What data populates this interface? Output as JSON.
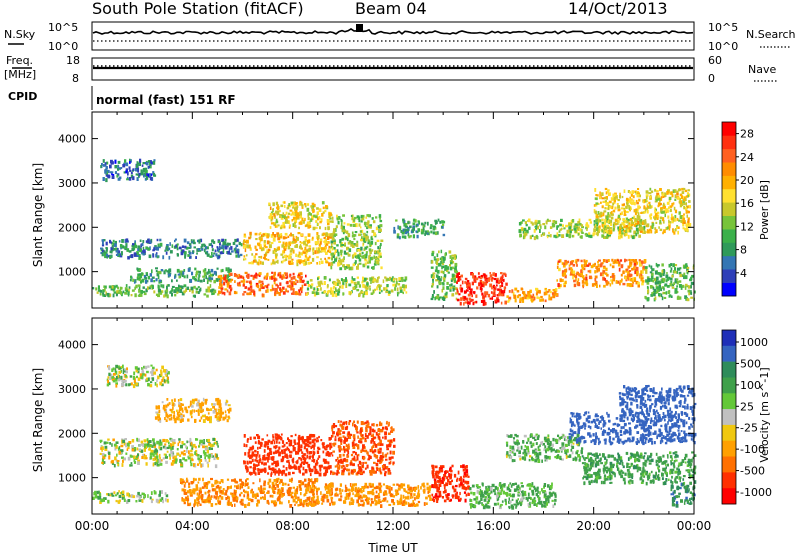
{
  "header": {
    "title": "South Pole Station (fitACF)",
    "beam": "Beam 04",
    "date": "14/Oct/2013"
  },
  "noise_panel": {
    "left_label": "N.Sky",
    "left_ticks": [
      "10^5",
      "10^0"
    ],
    "right_label": "N.Search",
    "right_ticks": [
      "10^5",
      "10^0"
    ]
  },
  "freq_panel": {
    "left_label_1": "Freq.",
    "left_label_2": "[MHz]",
    "left_ticks": [
      "18",
      "8"
    ],
    "right_label": "Nave",
    "right_ticks": [
      "60",
      "0"
    ]
  },
  "cpid": {
    "label": "CPID",
    "value": "normal (fast) 151 RF"
  },
  "chart_data": [
    {
      "type": "heatmap",
      "title": "",
      "xlabel": "",
      "ylabel": "Slant Range [km]",
      "x_ticks": [
        "00:00",
        "04:00",
        "08:00",
        "12:00",
        "16:00",
        "20:00",
        "00:00"
      ],
      "x_range_hours": [
        0,
        24
      ],
      "y_ticks": [
        1000,
        2000,
        3000,
        4000
      ],
      "ylim": [
        180,
        4600
      ],
      "colorbar": {
        "label": "Power [dB]",
        "ticks": [
          4,
          8,
          12,
          16,
          20,
          24,
          28
        ],
        "range": [
          0,
          30
        ],
        "colors": [
          "#0000ff",
          "#2e3fb8",
          "#3476b4",
          "#2f9a5a",
          "#3bb04a",
          "#77c43a",
          "#c8c82c",
          "#ffe030",
          "#ffb000",
          "#ff8c00",
          "#ff6020",
          "#ff3010",
          "#ff0000"
        ]
      },
      "echo_regions": [
        {
          "t": [
            0.3,
            2.5
          ],
          "r": [
            3100,
            3550
          ],
          "v": 6
        },
        {
          "t": [
            0.3,
            6.0
          ],
          "r": [
            1350,
            1750
          ],
          "v": 7
        },
        {
          "t": [
            1.5,
            5.5
          ],
          "r": [
            800,
            1100
          ],
          "v": 9
        },
        {
          "t": [
            0.0,
            5.0
          ],
          "r": [
            480,
            720
          ],
          "v": 11
        },
        {
          "t": [
            5.0,
            8.5
          ],
          "r": [
            500,
            1000
          ],
          "v": 24
        },
        {
          "t": [
            6.0,
            9.5
          ],
          "r": [
            1200,
            1900
          ],
          "v": 18
        },
        {
          "t": [
            7.0,
            9.5
          ],
          "r": [
            2000,
            2600
          ],
          "v": 17
        },
        {
          "t": [
            9.5,
            11.5
          ],
          "r": [
            1100,
            2300
          ],
          "v": 13
        },
        {
          "t": [
            8.5,
            12.5
          ],
          "r": [
            500,
            900
          ],
          "v": 14
        },
        {
          "t": [
            12.0,
            14.0
          ],
          "r": [
            1800,
            2200
          ],
          "v": 9
        },
        {
          "t": [
            13.5,
            14.5
          ],
          "r": [
            400,
            1500
          ],
          "v": 12
        },
        {
          "t": [
            14.5,
            16.5
          ],
          "r": [
            300,
            1000
          ],
          "v": 27
        },
        {
          "t": [
            16.5,
            18.5
          ],
          "r": [
            350,
            650
          ],
          "v": 21
        },
        {
          "t": [
            17.0,
            22.0
          ],
          "r": [
            1800,
            2200
          ],
          "v": 14
        },
        {
          "t": [
            18.5,
            22.0
          ],
          "r": [
            700,
            1300
          ],
          "v": 22
        },
        {
          "t": [
            20.0,
            23.8
          ],
          "r": [
            1900,
            2900
          ],
          "v": 17
        },
        {
          "t": [
            22.0,
            24.0
          ],
          "r": [
            400,
            1200
          ],
          "v": 11
        }
      ]
    },
    {
      "type": "heatmap",
      "title": "",
      "xlabel": "Time UT",
      "ylabel": "Slant Range [km]",
      "x_ticks": [
        "00:00",
        "04:00",
        "08:00",
        "12:00",
        "16:00",
        "20:00",
        "00:00"
      ],
      "x_range_hours": [
        0,
        24
      ],
      "y_ticks": [
        1000,
        2000,
        3000,
        4000
      ],
      "ylim": [
        180,
        4600
      ],
      "colorbar": {
        "label": "Velocity [m s^-1]",
        "ticks": [
          "1000",
          "500",
          "100",
          "25",
          "-25",
          "-100",
          "-500",
          "-1000"
        ],
        "colors": [
          "#1f2fb8",
          "#3564c0",
          "#2e8c5a",
          "#3fa04a",
          "#63c838",
          "#c0c0c0",
          "#f0c810",
          "#ffa000",
          "#ff7000",
          "#ff3000",
          "#ff0000"
        ]
      },
      "echo_regions": [
        {
          "t": [
            0.5,
            3.0
          ],
          "r": [
            3100,
            3550
          ],
          "v": 0
        },
        {
          "t": [
            0.3,
            5.0
          ],
          "r": [
            1300,
            1900
          ],
          "v": 0
        },
        {
          "t": [
            0.0,
            3.0
          ],
          "r": [
            480,
            720
          ],
          "v": 60
        },
        {
          "t": [
            2.5,
            5.5
          ],
          "r": [
            2300,
            2800
          ],
          "v": -150
        },
        {
          "t": [
            3.5,
            9.0
          ],
          "r": [
            400,
            1000
          ],
          "v": -300
        },
        {
          "t": [
            6.0,
            9.5
          ],
          "r": [
            1100,
            2000
          ],
          "v": -700
        },
        {
          "t": [
            9.5,
            12.0
          ],
          "r": [
            1100,
            2300
          ],
          "v": -500
        },
        {
          "t": [
            8.5,
            13.5
          ],
          "r": [
            400,
            900
          ],
          "v": -250
        },
        {
          "t": [
            13.5,
            15.0
          ],
          "r": [
            500,
            1300
          ],
          "v": -900
        },
        {
          "t": [
            15.0,
            18.5
          ],
          "r": [
            350,
            900
          ],
          "v": 150
        },
        {
          "t": [
            16.5,
            19.5
          ],
          "r": [
            1400,
            2000
          ],
          "v": 120
        },
        {
          "t": [
            19.0,
            24.0
          ],
          "r": [
            1800,
            2500
          ],
          "v": 700
        },
        {
          "t": [
            19.5,
            24.0
          ],
          "r": [
            900,
            1600
          ],
          "v": 200
        },
        {
          "t": [
            21.0,
            24.0
          ],
          "r": [
            2500,
            3100
          ],
          "v": 800
        },
        {
          "t": [
            23.0,
            24.0
          ],
          "r": [
            400,
            900
          ],
          "v": 400
        }
      ]
    }
  ]
}
